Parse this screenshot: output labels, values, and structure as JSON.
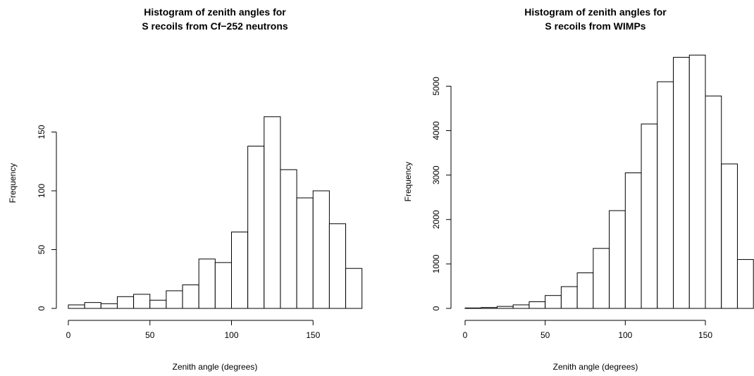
{
  "chart_data": [
    {
      "type": "bar",
      "title_lines": [
        "Histogram of zenith angles for",
        "S recoils from Cf−252 neutrons"
      ],
      "xlabel": "Zenith angle (degrees)",
      "ylabel": "Frequency",
      "bin_width": 10,
      "bin_starts": [
        0,
        10,
        20,
        30,
        40,
        50,
        60,
        70,
        80,
        90,
        100,
        110,
        120,
        130,
        140,
        150,
        160,
        170
      ],
      "values": [
        3,
        5,
        4,
        10,
        12,
        7,
        15,
        20,
        42,
        39,
        65,
        138,
        163,
        118,
        94,
        100,
        72,
        34
      ],
      "xlim": [
        0,
        180
      ],
      "ylim": [
        0,
        163
      ],
      "x_ticks": [
        0,
        50,
        100,
        150
      ],
      "y_ticks": [
        0,
        50,
        100,
        150
      ]
    },
    {
      "type": "bar",
      "title_lines": [
        "Histogram of zenith angles for",
        "S recoils from WIMPs"
      ],
      "xlabel": "Zenith angle (degrees)",
      "ylabel": "Frequency",
      "bin_width": 10,
      "bin_starts": [
        0,
        10,
        20,
        30,
        40,
        50,
        60,
        70,
        80,
        90,
        100,
        110,
        120,
        130,
        140,
        150,
        160,
        170
      ],
      "values": [
        10,
        20,
        45,
        80,
        150,
        290,
        490,
        800,
        1350,
        2200,
        3050,
        4150,
        5100,
        5650,
        5700,
        4780,
        3250,
        1100
      ],
      "xlim": [
        0,
        180
      ],
      "ylim": [
        0,
        5700
      ],
      "x_ticks": [
        0,
        50,
        100,
        150
      ],
      "y_ticks": [
        0,
        1000,
        2000,
        3000,
        4000,
        5000
      ]
    }
  ]
}
